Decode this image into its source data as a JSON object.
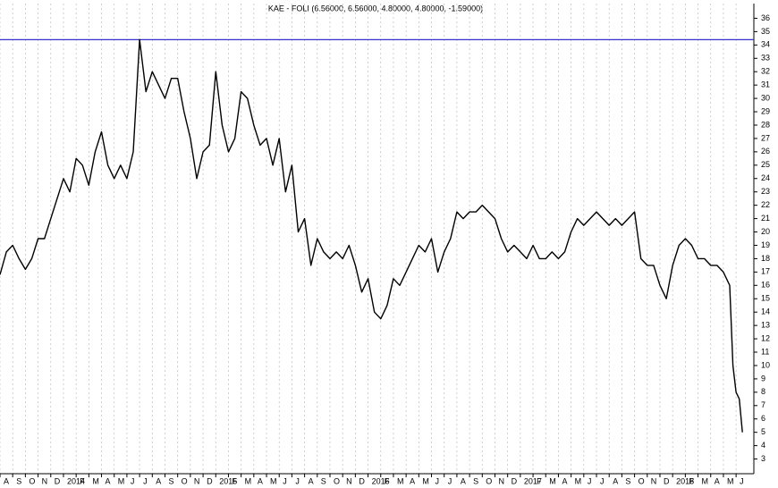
{
  "chart_data": {
    "type": "line",
    "title": "KAE - FOLI (6.56000, 6.56000, 4.80000, 4.80000, -1.59000)",
    "x": [
      0,
      0.5,
      1,
      1.5,
      2,
      2.5,
      3,
      3.5,
      4,
      4.5,
      5,
      5.5,
      6,
      6.5,
      7,
      7.5,
      8,
      8.5,
      9,
      9.5,
      10,
      10.5,
      11,
      11.5,
      12,
      12.5,
      13,
      13.5,
      14,
      14.5,
      15,
      15.5,
      16,
      16.5,
      17,
      17.5,
      18,
      18.5,
      19,
      19.5,
      20,
      20.5,
      21,
      21.5,
      22,
      22.5,
      23,
      23.5,
      24,
      24.5,
      25,
      25.5,
      26,
      26.5,
      27,
      27.5,
      28,
      28.5,
      29,
      29.5,
      30,
      30.5,
      31,
      31.5,
      32,
      32.5,
      33,
      33.5,
      34,
      34.5,
      35,
      35.5,
      36,
      36.5,
      37,
      37.5,
      38,
      38.5,
      39,
      39.5,
      40,
      40.5,
      41,
      41.5,
      42,
      42.5,
      43,
      43.5,
      44,
      44.5,
      45,
      45.5,
      46,
      46.5,
      47,
      47.5,
      48,
      48.5,
      49,
      49.5,
      50,
      50.5,
      51,
      51.5,
      52,
      52.5,
      53,
      53.5,
      54,
      54.5,
      55,
      55.5,
      56,
      56.5,
      57,
      57.5,
      57.75,
      58,
      58.25,
      58.5
    ],
    "series": [
      {
        "color": "#000000",
        "values": [
          16.8,
          18.5,
          19,
          18,
          17.2,
          18,
          19.5,
          19.5,
          21,
          22.5,
          24,
          23,
          25.5,
          25,
          23.5,
          26,
          27.5,
          25,
          24,
          25,
          24,
          26,
          34.4,
          30.5,
          32,
          31,
          30,
          31.5,
          31.5,
          29,
          27,
          24,
          26,
          26.5,
          32,
          28,
          26,
          27,
          30.5,
          30,
          28,
          26.5,
          27,
          25,
          27,
          23,
          25,
          20,
          21,
          17.5,
          19.5,
          18.5,
          18,
          18.5,
          18,
          19,
          17.5,
          15.5,
          16.5,
          14,
          13.5,
          14.5,
          16.5,
          16,
          17,
          18,
          19,
          18.5,
          19.5,
          17,
          18.5,
          19.5,
          21.5,
          21,
          21.5,
          21.5,
          22,
          21.5,
          21,
          19.5,
          18.5,
          19,
          18.5,
          18,
          19,
          18,
          18,
          18.5,
          18,
          18.5,
          20,
          21,
          20.5,
          21,
          21.5,
          21,
          20.5,
          21,
          20.5,
          21,
          21.5,
          18,
          17.5,
          17.5,
          16,
          15,
          17.5,
          19,
          19.5,
          19,
          18,
          18,
          17.5,
          17.5,
          17,
          16,
          10,
          8,
          7.5,
          5
        ]
      }
    ],
    "hline": {
      "value": 34.4,
      "color": "#3333cc"
    },
    "xlim": [
      0,
      59.4
    ],
    "ylim": [
      1.9,
      37.1
    ],
    "xticks": [
      {
        "value": 0,
        "label": "A"
      },
      {
        "value": 1,
        "label": "S"
      },
      {
        "value": 2,
        "label": "O"
      },
      {
        "value": 3,
        "label": "N"
      },
      {
        "value": 4,
        "label": "D"
      },
      {
        "value": 5,
        "label": "2014"
      },
      {
        "value": 6,
        "label": "F"
      },
      {
        "value": 7,
        "label": "M"
      },
      {
        "value": 8,
        "label": "A"
      },
      {
        "value": 9,
        "label": "M"
      },
      {
        "value": 10,
        "label": "J"
      },
      {
        "value": 11,
        "label": "J"
      },
      {
        "value": 12,
        "label": "A"
      },
      {
        "value": 13,
        "label": "S"
      },
      {
        "value": 14,
        "label": "O"
      },
      {
        "value": 15,
        "label": "N"
      },
      {
        "value": 16,
        "label": "D"
      },
      {
        "value": 17,
        "label": "2015"
      },
      {
        "value": 18,
        "label": "F"
      },
      {
        "value": 19,
        "label": "M"
      },
      {
        "value": 20,
        "label": "A"
      },
      {
        "value": 21,
        "label": "M"
      },
      {
        "value": 22,
        "label": "J"
      },
      {
        "value": 23,
        "label": "J"
      },
      {
        "value": 24,
        "label": "A"
      },
      {
        "value": 25,
        "label": "S"
      },
      {
        "value": 26,
        "label": "O"
      },
      {
        "value": 27,
        "label": "N"
      },
      {
        "value": 28,
        "label": "D"
      },
      {
        "value": 29,
        "label": "2016"
      },
      {
        "value": 30,
        "label": "F"
      },
      {
        "value": 31,
        "label": "M"
      },
      {
        "value": 32,
        "label": "A"
      },
      {
        "value": 33,
        "label": "M"
      },
      {
        "value": 34,
        "label": "J"
      },
      {
        "value": 35,
        "label": "J"
      },
      {
        "value": 36,
        "label": "A"
      },
      {
        "value": 37,
        "label": "S"
      },
      {
        "value": 38,
        "label": "O"
      },
      {
        "value": 39,
        "label": "N"
      },
      {
        "value": 40,
        "label": "D"
      },
      {
        "value": 41,
        "label": "2017"
      },
      {
        "value": 42,
        "label": "F"
      },
      {
        "value": 43,
        "label": "M"
      },
      {
        "value": 44,
        "label": "A"
      },
      {
        "value": 45,
        "label": "M"
      },
      {
        "value": 46,
        "label": "J"
      },
      {
        "value": 47,
        "label": "J"
      },
      {
        "value": 48,
        "label": "A"
      },
      {
        "value": 49,
        "label": "S"
      },
      {
        "value": 50,
        "label": "O"
      },
      {
        "value": 51,
        "label": "N"
      },
      {
        "value": 52,
        "label": "D"
      },
      {
        "value": 53,
        "label": "2018"
      },
      {
        "value": 54,
        "label": "F"
      },
      {
        "value": 55,
        "label": "M"
      },
      {
        "value": 56,
        "label": "A"
      },
      {
        "value": 57,
        "label": "M"
      },
      {
        "value": 58,
        "label": "J"
      }
    ],
    "yticks": [
      3,
      4,
      5,
      6,
      7,
      8,
      9,
      10,
      11,
      12,
      13,
      14,
      15,
      16,
      17,
      18,
      19,
      20,
      21,
      22,
      23,
      24,
      25,
      26,
      27,
      28,
      29,
      30,
      31,
      32,
      33,
      34,
      35,
      36
    ],
    "grid": true
  }
}
